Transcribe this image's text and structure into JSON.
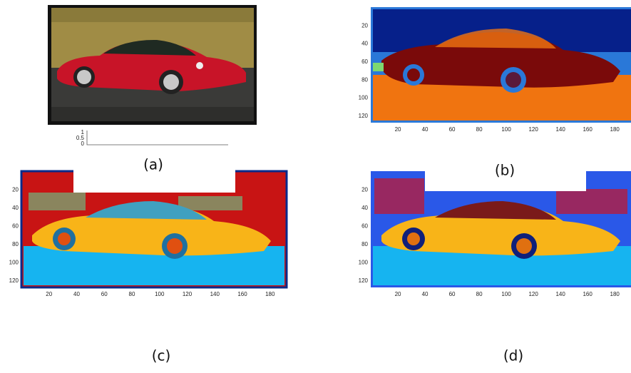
{
  "panels": [
    {
      "label": "(a)",
      "axis": {
        "yticks": [
          "1",
          "0.5",
          "0"
        ]
      }
    },
    {
      "label": "(b)",
      "yticks": [
        "20",
        "40",
        "60",
        "80",
        "100",
        "120"
      ],
      "xticks": [
        "20",
        "40",
        "60",
        "80",
        "100",
        "120",
        "140",
        "160",
        "180"
      ]
    },
    {
      "label": "(c)",
      "yticks": [
        "20",
        "40",
        "60",
        "80",
        "100",
        "120"
      ],
      "xticks": [
        "20",
        "40",
        "60",
        "80",
        "100",
        "120",
        "140",
        "160",
        "180"
      ]
    },
    {
      "label": "(d)",
      "yticks": [
        "20",
        "40",
        "60",
        "80",
        "100",
        "120"
      ],
      "xticks": [
        "20",
        "40",
        "60",
        "80",
        "100",
        "120",
        "140",
        "160",
        "180"
      ]
    }
  ]
}
